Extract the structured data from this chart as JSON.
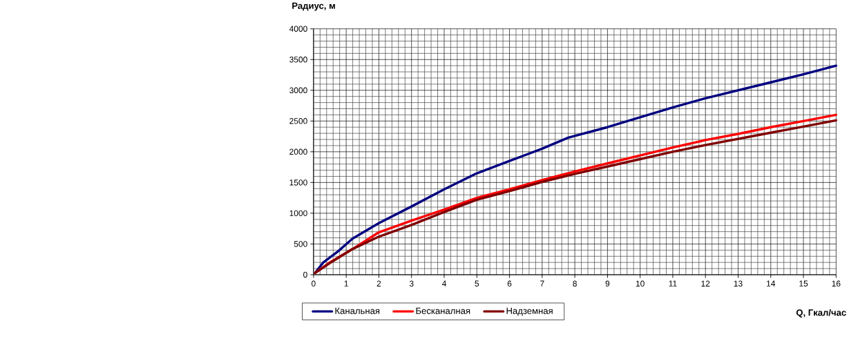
{
  "chart_data": {
    "type": "line",
    "xlabel": "Q, Гкал/час",
    "ylabel": "Радиус, м",
    "xlim": [
      0,
      16
    ],
    "ylim": [
      0,
      4000
    ],
    "xticks": [
      0,
      1,
      2,
      3,
      4,
      5,
      6,
      7,
      8,
      9,
      10,
      11,
      12,
      13,
      14,
      15,
      16
    ],
    "yticks": [
      0,
      500,
      1000,
      1500,
      2000,
      2500,
      3000,
      3500,
      4000
    ],
    "grid": true,
    "legend": "bottom",
    "series": [
      {
        "name": "Канальная",
        "color": "#000080",
        "x": [
          0.05,
          0.3,
          0.75,
          1.2,
          2,
          3,
          4,
          5,
          6,
          7,
          7.8,
          9,
          10,
          11,
          12,
          13,
          14,
          15,
          16
        ],
        "values": [
          30,
          200,
          380,
          590,
          840,
          1110,
          1390,
          1650,
          1850,
          2050,
          2230,
          2400,
          2560,
          2720,
          2870,
          3000,
          3130,
          3260,
          3400
        ]
      },
      {
        "name": "Бесканалная",
        "color": "#ff0000",
        "x": [
          0.05,
          0.5,
          1.2,
          2,
          3,
          4,
          5,
          6,
          7,
          8,
          9,
          10,
          11,
          12,
          13,
          14,
          15,
          16
        ],
        "values": [
          30,
          200,
          420,
          690,
          880,
          1060,
          1250,
          1390,
          1540,
          1680,
          1810,
          1940,
          2070,
          2190,
          2290,
          2400,
          2500,
          2600
        ]
      },
      {
        "name": "Надземная",
        "color": "#800000",
        "x": [
          0.05,
          0.5,
          1.2,
          2,
          3,
          4,
          5,
          6,
          7,
          8,
          9,
          10,
          11,
          12,
          13,
          14,
          15,
          16
        ],
        "values": [
          30,
          190,
          420,
          620,
          810,
          1020,
          1220,
          1360,
          1510,
          1640,
          1760,
          1880,
          2000,
          2110,
          2210,
          2310,
          2410,
          2510
        ]
      }
    ]
  }
}
